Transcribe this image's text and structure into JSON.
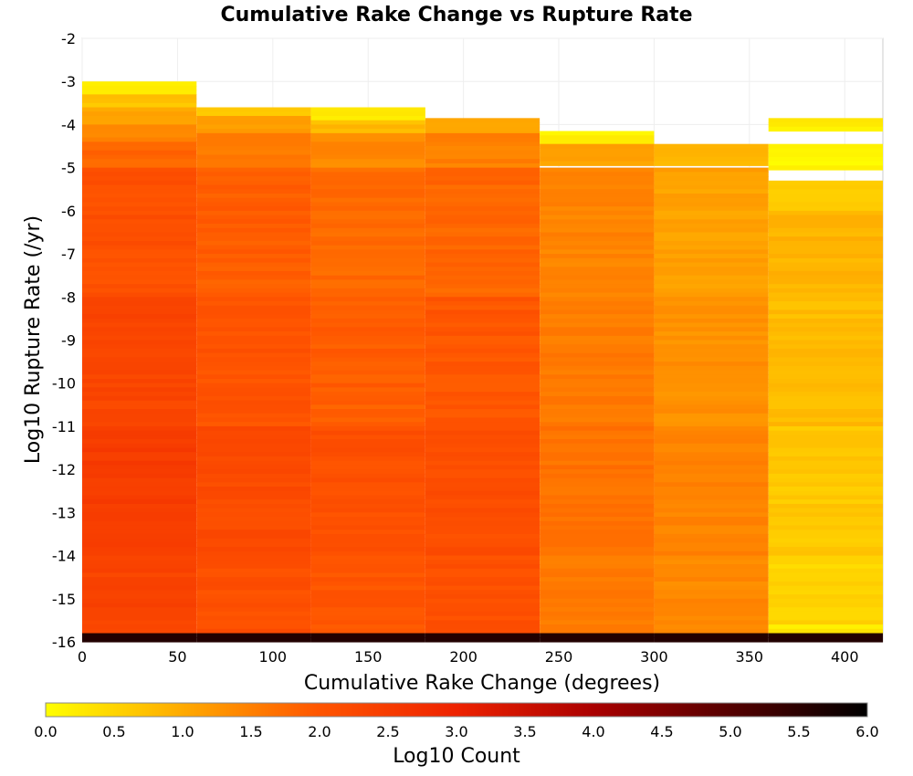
{
  "chart_data": {
    "type": "heatmap",
    "title": "Cumulative Rake Change vs Rupture Rate",
    "xlabel": "Cumulative Rake Change (degrees)",
    "ylabel": "Log10 Rupture Rate (/yr)",
    "xlim": [
      0,
      420
    ],
    "ylim": [
      -16,
      -2
    ],
    "x_ticks": [
      0,
      50,
      100,
      150,
      200,
      250,
      300,
      350,
      400
    ],
    "y_ticks": [
      -2,
      -3,
      -4,
      -5,
      -6,
      -7,
      -8,
      -9,
      -10,
      -11,
      -12,
      -13,
      -14,
      -15,
      -16
    ],
    "x_bin_edges": [
      0,
      60,
      120,
      180,
      240,
      300,
      360,
      420
    ],
    "y_bin_width": 0.1,
    "colorbar": {
      "label": "Log10 Count",
      "min": 0.0,
      "max": 6.0,
      "ticks": [
        "0.0",
        "0.5",
        "1.0",
        "1.5",
        "2.0",
        "2.5",
        "3.0",
        "3.5",
        "4.0",
        "4.5",
        "5.0",
        "5.5",
        "6.0"
      ],
      "colors": [
        "#ffff00",
        "#ffaa00",
        "#ff5500",
        "#ee2200",
        "#aa0000",
        "#550000",
        "#000000"
      ]
    },
    "columns": [
      {
        "x_range": [
          0,
          60
        ],
        "top": -3.0,
        "values": [
          {
            "y_range": [
              -3.0,
              -3.3
            ],
            "value": 0.3
          },
          {
            "y_range": [
              -3.3,
              -3.6
            ],
            "value": 0.7
          },
          {
            "y_range": [
              -3.6,
              -4.0
            ],
            "value": 1.1
          },
          {
            "y_range": [
              -4.0,
              -4.4
            ],
            "value": 1.4
          },
          {
            "y_range": [
              -4.4,
              -5.0
            ],
            "value": 1.8
          },
          {
            "y_range": [
              -5.0,
              -8.0
            ],
            "value": 2.1
          },
          {
            "y_range": [
              -8.0,
              -11.0
            ],
            "value": 2.3
          },
          {
            "y_range": [
              -11.0,
              -14.0
            ],
            "value": 2.5
          },
          {
            "y_range": [
              -14.0,
              -15.8
            ],
            "value": 2.35
          },
          {
            "y_range": [
              -15.8,
              -16.0
            ],
            "value": 5.6
          }
        ]
      },
      {
        "x_range": [
          60,
          120
        ],
        "top": -3.6,
        "values": [
          {
            "y_range": [
              -3.6,
              -3.8
            ],
            "value": 0.6
          },
          {
            "y_range": [
              -3.8,
              -4.2
            ],
            "value": 1.2
          },
          {
            "y_range": [
              -4.2,
              -5.0
            ],
            "value": 1.6
          },
          {
            "y_range": [
              -5.0,
              -8.0
            ],
            "value": 1.9
          },
          {
            "y_range": [
              -8.0,
              -11.0
            ],
            "value": 2.05
          },
          {
            "y_range": [
              -11.0,
              -14.0
            ],
            "value": 2.2
          },
          {
            "y_range": [
              -14.0,
              -15.8
            ],
            "value": 2.1
          },
          {
            "y_range": [
              -15.8,
              -16.0
            ],
            "value": 5.6
          }
        ]
      },
      {
        "x_range": [
          120,
          180
        ],
        "top": -3.6,
        "values": [
          {
            "y_range": [
              -3.6,
              -3.9
            ],
            "value": 0.2
          },
          {
            "y_range": [
              -3.9,
              -4.2
            ],
            "value": 0.8
          },
          {
            "y_range": [
              -4.2,
              -5.0
            ],
            "value": 1.4
          },
          {
            "y_range": [
              -5.0,
              -8.0
            ],
            "value": 1.75
          },
          {
            "y_range": [
              -8.0,
              -11.0
            ],
            "value": 1.9
          },
          {
            "y_range": [
              -11.0,
              -14.0
            ],
            "value": 2.1
          },
          {
            "y_range": [
              -14.0,
              -15.8
            ],
            "value": 2.0
          },
          {
            "y_range": [
              -15.8,
              -16.0
            ],
            "value": 5.6
          }
        ]
      },
      {
        "x_range": [
          180,
          240
        ],
        "top": -3.85,
        "values": [
          {
            "y_range": [
              -3.85,
              -4.2
            ],
            "value": 1.0
          },
          {
            "y_range": [
              -4.2,
              -5.0
            ],
            "value": 1.5
          },
          {
            "y_range": [
              -5.0,
              -8.0
            ],
            "value": 1.8
          },
          {
            "y_range": [
              -8.0,
              -11.0
            ],
            "value": 2.0
          },
          {
            "y_range": [
              -11.0,
              -14.0
            ],
            "value": 2.15
          },
          {
            "y_range": [
              -14.0,
              -15.8
            ],
            "value": 2.1
          },
          {
            "y_range": [
              -15.8,
              -16.0
            ],
            "value": 5.6
          }
        ]
      },
      {
        "x_range": [
          240,
          300
        ],
        "top": -4.15,
        "values": [
          {
            "y_range": [
              -4.15,
              -4.45
            ],
            "value": 0.2
          },
          {
            "y_range": [
              -4.45,
              -5.0
            ],
            "value": 1.1
          },
          {
            "y_range": [
              -5.0,
              -8.0
            ],
            "value": 1.45
          },
          {
            "y_range": [
              -8.0,
              -11.0
            ],
            "value": 1.55
          },
          {
            "y_range": [
              -11.0,
              -14.0
            ],
            "value": 1.65
          },
          {
            "y_range": [
              -14.0,
              -15.8
            ],
            "value": 1.55
          },
          {
            "y_range": [
              -15.8,
              -16.0
            ],
            "value": 5.6
          }
        ]
      },
      {
        "x_range": [
          300,
          360
        ],
        "top": -4.45,
        "values": [
          {
            "y_range": [
              -4.45,
              -5.0
            ],
            "value": 0.8
          },
          {
            "y_range": [
              -5.0,
              -8.0
            ],
            "value": 1.1
          },
          {
            "y_range": [
              -8.0,
              -11.0
            ],
            "value": 1.3
          },
          {
            "y_range": [
              -11.0,
              -14.0
            ],
            "value": 1.45
          },
          {
            "y_range": [
              -14.0,
              -15.8
            ],
            "value": 1.4
          },
          {
            "y_range": [
              -15.8,
              -16.0
            ],
            "value": 5.6
          }
        ]
      },
      {
        "x_range": [
          360,
          420
        ],
        "top": -3.85,
        "values": [
          {
            "y_range": [
              -3.85,
              -4.15
            ],
            "value": 0.2
          },
          {
            "y_range": [
              -4.45,
              -5.05
            ],
            "value": 0.1
          },
          {
            "y_range": [
              -5.3,
              -6.0
            ],
            "value": 0.6
          },
          {
            "y_range": [
              -6.0,
              -8.0
            ],
            "value": 0.9
          },
          {
            "y_range": [
              -8.0,
              -11.0
            ],
            "value": 0.8
          },
          {
            "y_range": [
              -11.0,
              -14.0
            ],
            "value": 0.65
          },
          {
            "y_range": [
              -14.0,
              -15.6
            ],
            "value": 0.5
          },
          {
            "y_range": [
              -15.6,
              -15.8
            ],
            "value": 0.25
          },
          {
            "y_range": [
              -15.8,
              -16.0
            ],
            "value": 5.6
          }
        ]
      }
    ]
  }
}
